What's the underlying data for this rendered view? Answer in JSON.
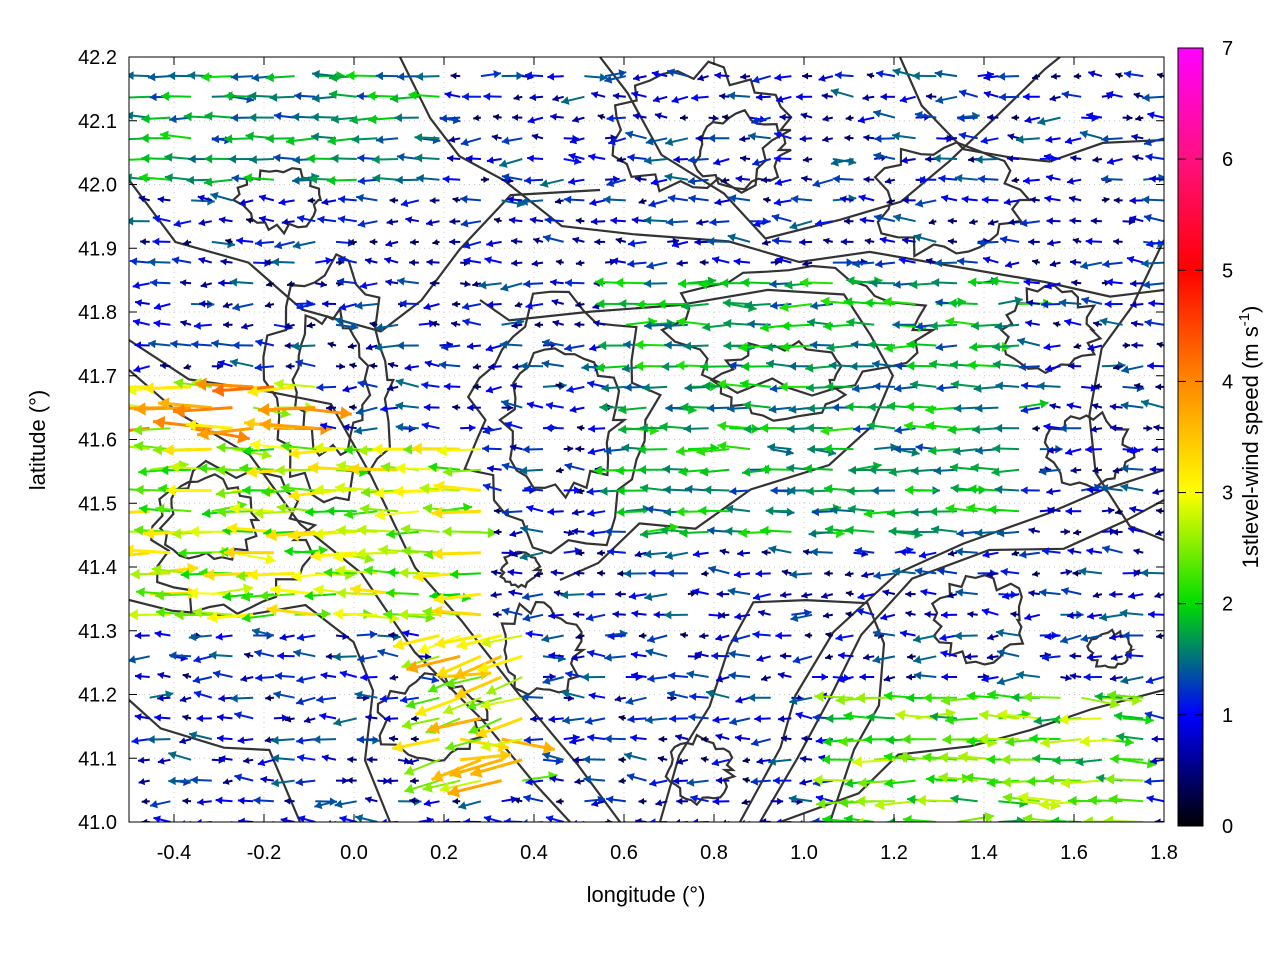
{
  "chart_data": {
    "type": "vector-field",
    "xlabel": "longitude (°)",
    "ylabel": "latitude (°)",
    "xlim": [
      -0.5,
      1.8
    ],
    "ylim": [
      41.0,
      42.2
    ],
    "xticks": [
      "-0.4",
      "-0.2",
      "0.0",
      "0.2",
      "0.4",
      "0.6",
      "0.8",
      "1.0",
      "1.2",
      "1.4",
      "1.6",
      "1.8"
    ],
    "yticks": [
      "41.0",
      "41.1",
      "41.2",
      "41.3",
      "41.4",
      "41.5",
      "41.6",
      "41.7",
      "41.8",
      "41.9",
      "42.0",
      "42.1",
      "42.2"
    ],
    "grid": true,
    "colorbar": {
      "label": "1stlevel-wind speed (m s",
      "label_sup": "-1",
      "label_close": ")",
      "range": [
        0,
        7
      ],
      "ticks": [
        "0",
        "1",
        "2",
        "3",
        "4",
        "5",
        "6",
        "7"
      ],
      "colors": [
        "#000000",
        "#0000ff",
        "#00dd00",
        "#ffff00",
        "#ff8800",
        "#ff0000",
        "#ff00ff"
      ]
    },
    "wind_regions": [
      {
        "x": [
          -0.5,
          -0.05
        ],
        "y": [
          41.4,
          41.7
        ],
        "speed": 3.5,
        "dir": "west"
      },
      {
        "x": [
          -0.5,
          0.3
        ],
        "y": [
          41.3,
          41.6
        ],
        "speed": 2.8,
        "dir": "west"
      },
      {
        "x": [
          0.15,
          0.4
        ],
        "y": [
          41.05,
          41.3
        ],
        "speed": 3.2,
        "dir": "southwest"
      },
      {
        "x": [
          1.1,
          1.8
        ],
        "y": [
          41.0,
          41.2
        ],
        "speed": 2.4,
        "dir": "west"
      },
      {
        "x": [
          0.6,
          1.5
        ],
        "y": [
          41.45,
          41.85
        ],
        "speed": 1.8,
        "dir": "west"
      },
      {
        "x": [
          -0.5,
          0.2
        ],
        "y": [
          42.0,
          42.2
        ],
        "speed": 1.7,
        "dir": "west"
      }
    ]
  }
}
